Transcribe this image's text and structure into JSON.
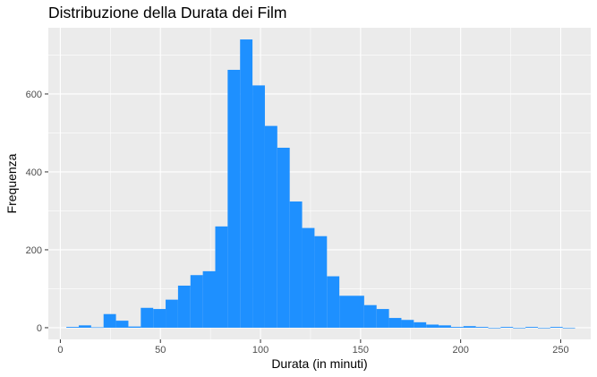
{
  "chart_data": {
    "type": "bar",
    "title": "Distribuzione della Durata dei Film",
    "xlabel": "Durata (in minuti)",
    "ylabel": "Frequenza",
    "xlim": [
      -6,
      265
    ],
    "ylim": [
      -30,
      770
    ],
    "x_ticks": [
      0,
      50,
      100,
      150,
      200,
      250
    ],
    "y_ticks": [
      0,
      200,
      400,
      600
    ],
    "bin_width": 6.2,
    "bins_start": [
      3.0,
      9.2,
      15.4,
      21.6,
      27.8,
      34.0,
      40.2,
      46.4,
      52.6,
      58.8,
      65.0,
      71.2,
      77.4,
      83.6,
      89.8,
      96.0,
      102.2,
      108.4,
      114.6,
      120.8,
      127.0,
      133.2,
      139.4,
      145.6,
      151.8,
      158.0,
      164.2,
      170.4,
      176.6,
      182.8,
      189.0,
      195.2,
      201.4,
      207.6,
      213.8,
      220.0,
      226.2,
      232.4,
      238.6,
      244.8,
      251.0
    ],
    "values": [
      2,
      6,
      1,
      35,
      18,
      3,
      51,
      48,
      72,
      108,
      135,
      145,
      260,
      662,
      740,
      622,
      518,
      462,
      324,
      256,
      235,
      132,
      82,
      82,
      58,
      48,
      25,
      20,
      14,
      8,
      6,
      2,
      4,
      2,
      0,
      2,
      0,
      2,
      0,
      2,
      0
    ],
    "bar_color": "#1E90FF",
    "panel_background": "#EBEBEB",
    "gridline_color": "#FFFFFF",
    "grid": true,
    "legend": "none"
  }
}
